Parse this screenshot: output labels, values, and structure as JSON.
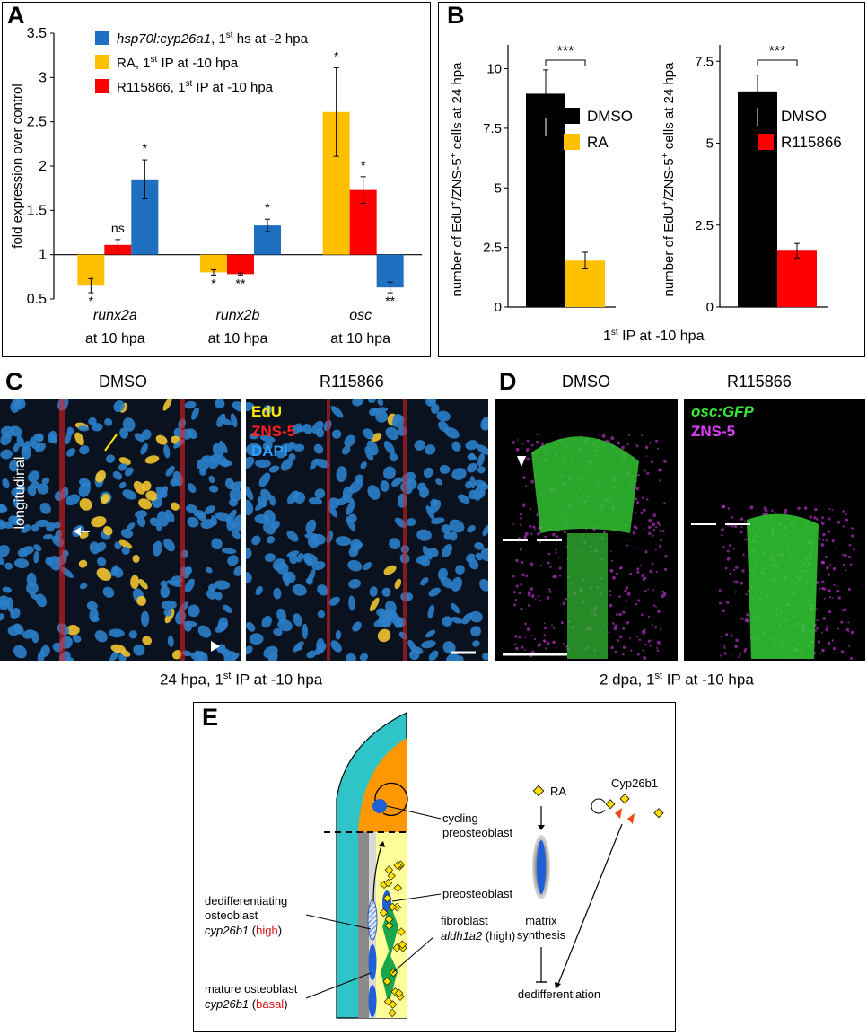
{
  "panel_labels": {
    "a": "A",
    "b": "B",
    "c": "C",
    "d": "D",
    "e": "E"
  },
  "chart_data": [
    {
      "type": "bar",
      "ylabel": "fold expression over control",
      "ylim": [
        0.5,
        3.5
      ],
      "yticks": [
        "0.5",
        "1",
        "1.5",
        "2",
        "2.5",
        "3",
        "3.5"
      ],
      "baseline": 1,
      "categories": [
        {
          "name": "runx2a",
          "sub": "at 10 hpa"
        },
        {
          "name": "runx2b",
          "sub": "at 10 hpa"
        },
        {
          "name": "osc",
          "sub": "at 10 hpa"
        }
      ],
      "series": [
        {
          "name_italic": "hsp70l:cyp26a1",
          "name_rest": ", 1",
          "sup": "st",
          "name_tail": " hs at -2 hpa",
          "color": "#1f6fc0",
          "values": [
            1.85,
            1.33,
            0.63
          ],
          "err": [
            0.22,
            0.07,
            0.06
          ],
          "sig": [
            "*",
            "*",
            "**"
          ]
        },
        {
          "name_rest": "RA, 1",
          "sup": "st",
          "name_tail": " IP at -10 hpa",
          "color": "#ffc000",
          "values": [
            0.65,
            0.8,
            2.61
          ],
          "err": [
            0.08,
            0.03,
            0.5
          ],
          "sig": [
            "*",
            "*",
            "*"
          ]
        },
        {
          "name_rest": "R115866, 1",
          "sup": "st",
          "name_tail": " IP at -10 hpa",
          "color": "#ff0000",
          "values": [
            1.11,
            0.78,
            1.73
          ],
          "err": [
            0.06,
            0.01,
            0.15
          ],
          "sig": [
            "ns",
            "**",
            "*"
          ]
        }
      ],
      "draw_order": [
        1,
        2,
        0
      ]
    },
    {
      "type": "bar",
      "ylabel_parts": [
        "number of EdU",
        "+",
        "/ZNS-5",
        "+",
        " cells at 24 hpa"
      ],
      "ylim": [
        0,
        11
      ],
      "yticks": [
        "0",
        "2.5",
        "5",
        "7.5",
        "10"
      ],
      "categories": [
        "DMSO",
        "RA"
      ],
      "values": [
        8.95,
        1.95
      ],
      "err": [
        1.0,
        0.35
      ],
      "colors": [
        "#000000",
        "#ffc000"
      ],
      "sig": "***"
    },
    {
      "type": "bar",
      "ylabel_parts": [
        "number of EdU",
        "+",
        "/ZNS-5",
        "+",
        " cells at 24 hpa"
      ],
      "ylim": [
        0,
        8
      ],
      "yticks": [
        "0",
        "2.5",
        "5",
        "7.5"
      ],
      "categories": [
        "DMSO",
        "R115866"
      ],
      "values": [
        6.58,
        1.72
      ],
      "err": [
        0.5,
        0.22
      ],
      "colors": [
        "#000000",
        "#ff0000"
      ],
      "sig": "***"
    }
  ],
  "panel_b": {
    "xlabel_pre": "1",
    "xlabel_sup": "st",
    "xlabel_post": " IP at -10 hpa"
  },
  "panel_c": {
    "title_left": "DMSO",
    "title_right": "R115866",
    "side_label": "longitudinal",
    "legend": [
      {
        "text": "EdU",
        "color": "#ffe800"
      },
      {
        "text": "ZNS-5",
        "color": "#ff2020"
      },
      {
        "text": "DAPI",
        "color": "#2ea0ff"
      }
    ],
    "caption_pre": "24 hpa, 1",
    "caption_sup": "st",
    "caption_post": " IP at -10 hpa"
  },
  "panel_d": {
    "title_left": "DMSO",
    "title_right": "R115866",
    "legend": [
      {
        "text": "osc:GFP",
        "color": "#39e639",
        "italic": true
      },
      {
        "text": "ZNS-5",
        "color": "#e040ff"
      }
    ],
    "caption_pre": "2 dpa, 1",
    "caption_sup": "st",
    "caption_post": " IP at -10 hpa"
  },
  "panel_e": {
    "cycling": "cycling",
    "preosteoblast_top": "preosteoblast",
    "preosteoblast": "preosteoblast",
    "dediff_1": "dedifferentiating",
    "dediff_2": "osteoblast",
    "dediff_gene": "cyp26b1",
    "dediff_level": "high",
    "fibro_1": "fibroblast",
    "fibro_gene": "aldh1a2",
    "fibro_level": "(high)",
    "mature_1": "mature osteoblast",
    "mature_gene": "cyp26b1",
    "mature_level": "basal",
    "ra": "RA",
    "cyp": "Cyp26b1",
    "matrix_1": "matrix",
    "matrix_2": "synthesis",
    "dediff": "dedifferentiation"
  }
}
